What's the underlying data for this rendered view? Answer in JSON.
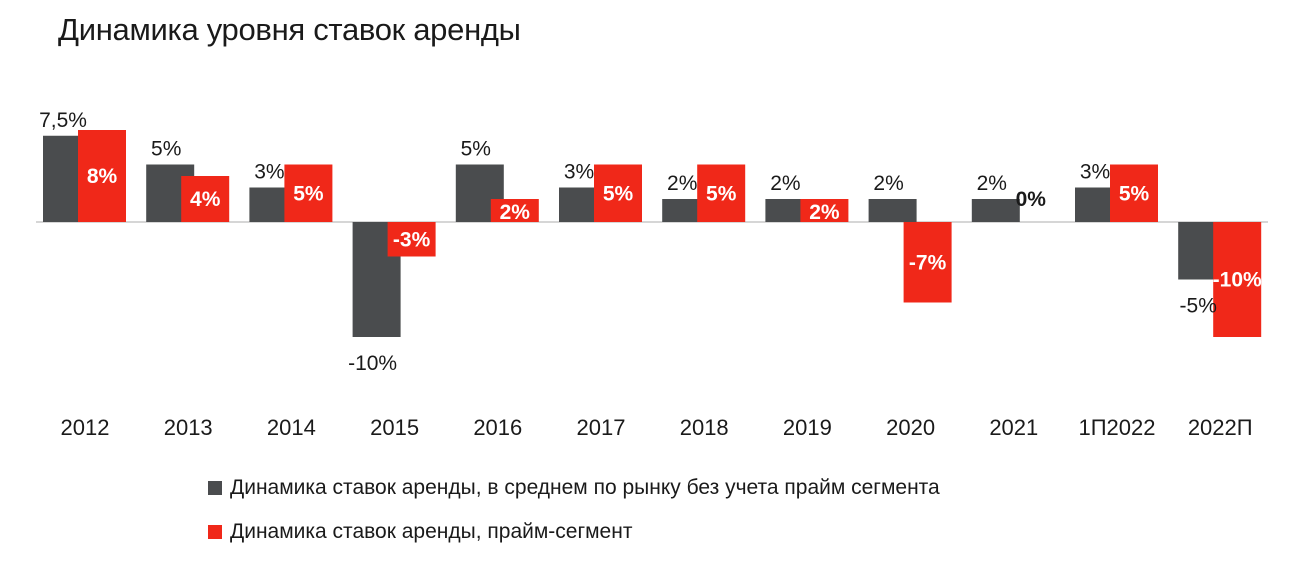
{
  "title": "Динамика уровня ставок аренды",
  "colors": {
    "grey": "#4a4c4e",
    "red": "#f02819",
    "axis": "#c8c8c8"
  },
  "chart_data": {
    "type": "bar",
    "title": "Динамика уровня ставок аренды",
    "xlabel": "",
    "ylabel": "",
    "ylim": [
      -10,
      8
    ],
    "categories": [
      "2012",
      "2013",
      "2014",
      "2015",
      "2016",
      "2017",
      "2018",
      "2019",
      "2020",
      "2021",
      "1П2022",
      "2022П"
    ],
    "series": [
      {
        "name": "Динамика ставок аренды, в среднем по рынку без учета прайм сегмента",
        "color": "#4a4c4e",
        "values": [
          7.5,
          5,
          3,
          -10,
          5,
          3,
          2,
          2,
          2,
          2,
          3,
          -5
        ],
        "labels": [
          "7,5%",
          "5%",
          "3%",
          "-10%",
          "5%",
          "3%",
          "2%",
          "2%",
          "2%",
          "2%",
          "3%",
          "-5%"
        ]
      },
      {
        "name": "Динамика ставок аренды, прайм-сегмент",
        "color": "#f02819",
        "values": [
          8,
          4,
          5,
          -3,
          2,
          5,
          5,
          2,
          -7,
          0,
          5,
          -10
        ],
        "labels": [
          "8%",
          "4%",
          "5%",
          "-3%",
          "2%",
          "5%",
          "5%",
          "2%",
          "-7%",
          "0%",
          "5%",
          "-10%"
        ]
      }
    ],
    "legend": "bottom"
  }
}
